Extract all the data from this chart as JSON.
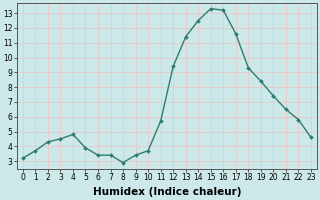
{
  "x": [
    0,
    1,
    2,
    3,
    4,
    5,
    6,
    7,
    8,
    9,
    10,
    11,
    12,
    13,
    14,
    15,
    16,
    17,
    18,
    19,
    20,
    21,
    22,
    23
  ],
  "y": [
    3.2,
    3.7,
    4.3,
    4.5,
    4.8,
    3.9,
    3.4,
    3.4,
    2.9,
    3.4,
    3.7,
    5.7,
    9.4,
    11.4,
    12.5,
    13.3,
    13.2,
    11.6,
    9.3,
    8.4,
    7.4,
    6.5,
    5.8,
    4.6
  ],
  "line_color": "#2e7d6e",
  "marker": "D",
  "marker_size": 2.0,
  "bg_color": "#cce8e8",
  "grid_color": "#e8c8c8",
  "xlabel": "Humidex (Indice chaleur)",
  "xlim": [
    -0.5,
    23.5
  ],
  "ylim": [
    2.5,
    13.7
  ],
  "yticks": [
    3,
    4,
    5,
    6,
    7,
    8,
    9,
    10,
    11,
    12,
    13
  ],
  "xticks": [
    0,
    1,
    2,
    3,
    4,
    5,
    6,
    7,
    8,
    9,
    10,
    11,
    12,
    13,
    14,
    15,
    16,
    17,
    18,
    19,
    20,
    21,
    22,
    23
  ],
  "tick_fontsize": 5.5,
  "xlabel_fontsize": 7.5,
  "xlabel_fontweight": "bold",
  "linewidth": 1.0
}
